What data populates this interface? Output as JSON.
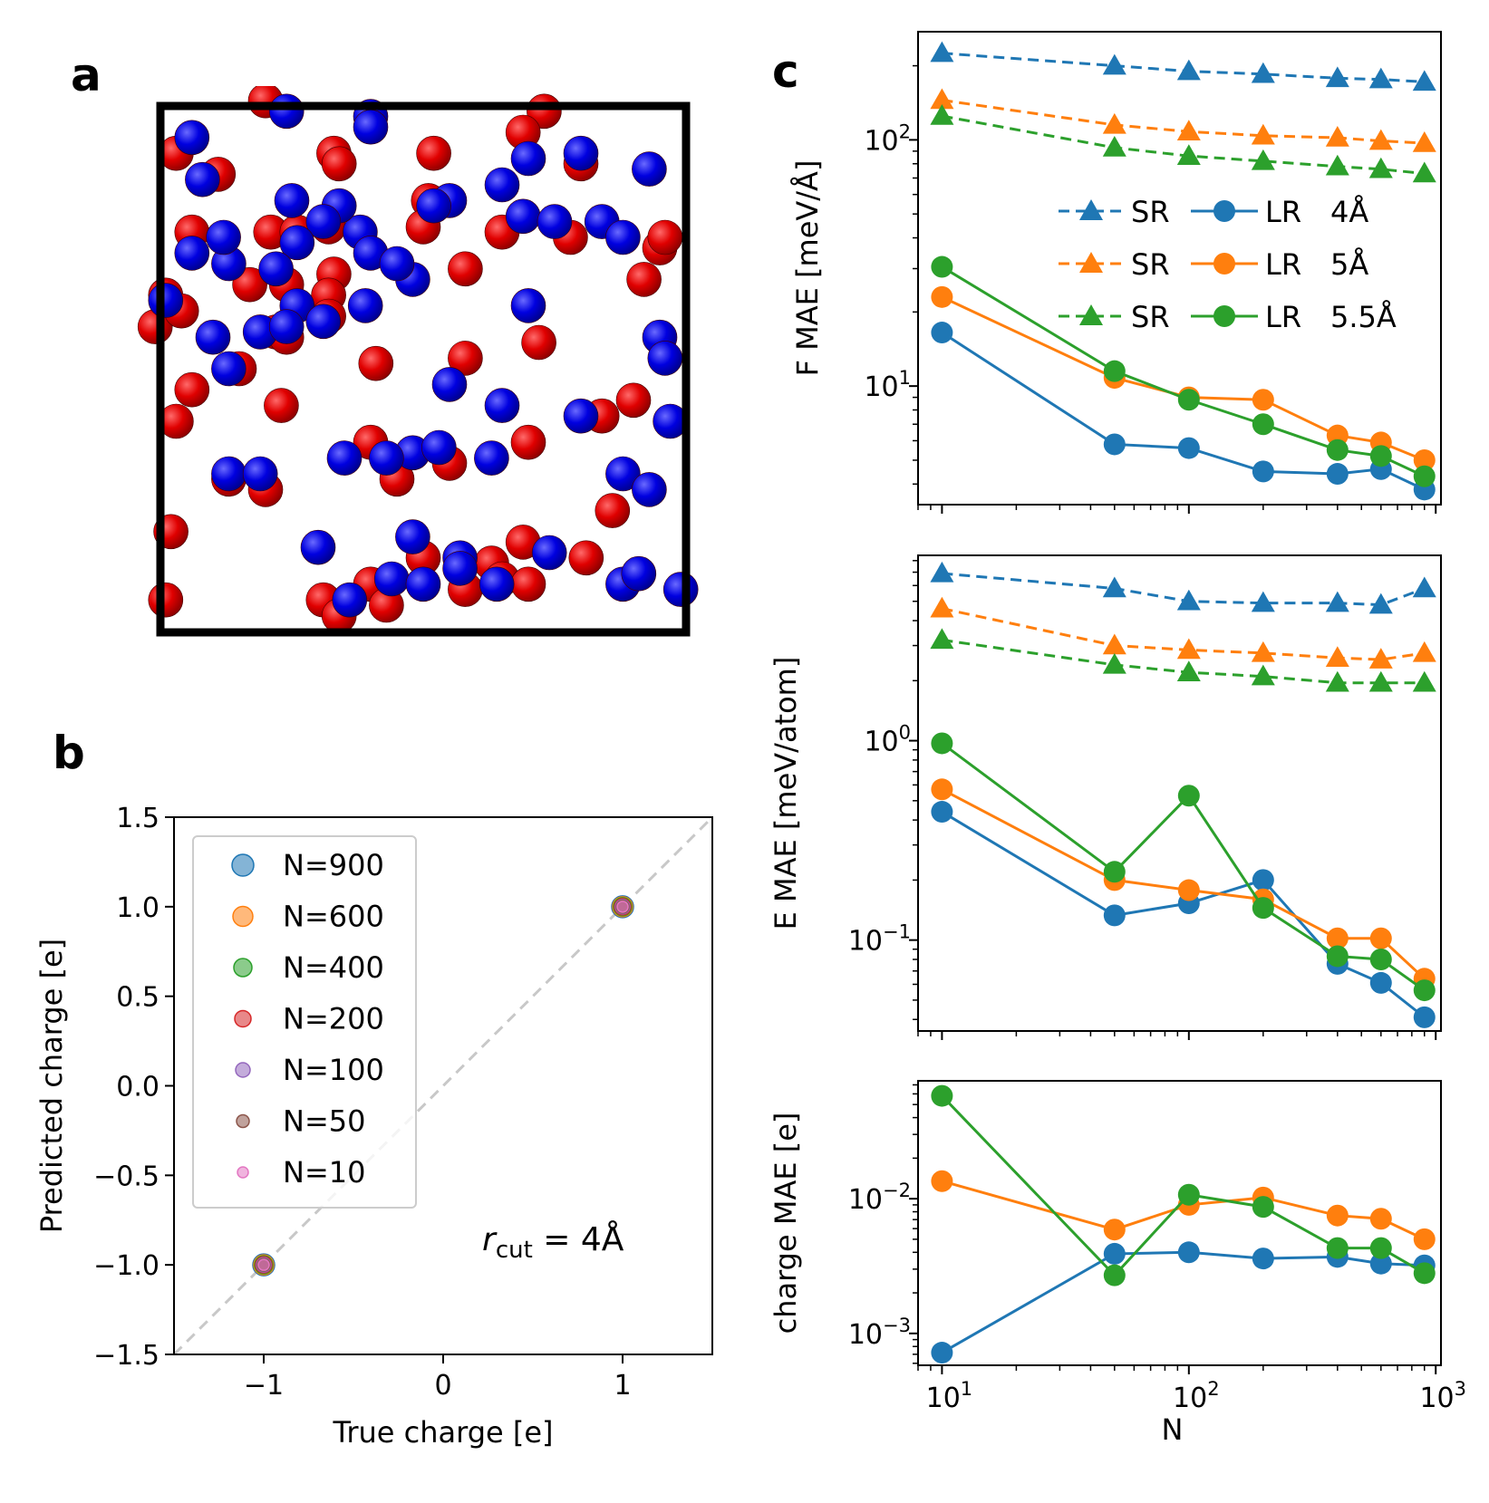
{
  "panels": {
    "a": "a",
    "b": "b",
    "c": "c"
  },
  "colors": {
    "blue": "#1f77b4",
    "orange": "#ff7f0e",
    "green": "#2ca02c",
    "red": "#d62728",
    "purple": "#9467bd",
    "brown": "#8c564b",
    "pink": "#e377c2",
    "atom_red": "#e00000",
    "atom_blue": "#0000e0"
  },
  "atoms": {
    "description_box": "simulation cell",
    "positive": [
      [
        0.2,
        -0.01
      ],
      [
        0.73,
        0.01
      ],
      [
        0.69,
        0.05
      ],
      [
        0.52,
        0.09
      ],
      [
        0.03,
        0.09
      ],
      [
        0.11,
        0.13
      ],
      [
        0.33,
        0.09
      ],
      [
        0.34,
        0.11
      ],
      [
        0.8,
        0.11
      ],
      [
        0.51,
        0.18
      ],
      [
        0.5,
        0.23
      ],
      [
        0.65,
        0.24
      ],
      [
        0.21,
        0.24
      ],
      [
        0.26,
        0.24
      ],
      [
        0.32,
        0.23
      ],
      [
        0.06,
        0.24
      ],
      [
        0.78,
        0.25
      ],
      [
        0.95,
        0.27
      ],
      [
        0.92,
        0.33
      ],
      [
        0.33,
        0.32
      ],
      [
        0.17,
        0.34
      ],
      [
        0.24,
        0.34
      ],
      [
        0.32,
        0.36
      ],
      [
        0.32,
        0.4
      ],
      [
        0.58,
        0.31
      ],
      [
        0.01,
        0.36
      ],
      [
        -0.01,
        0.42
      ],
      [
        0.04,
        0.39
      ],
      [
        0.22,
        0.43
      ],
      [
        0.24,
        0.44
      ],
      [
        0.41,
        0.49
      ],
      [
        0.58,
        0.48
      ],
      [
        0.15,
        0.5
      ],
      [
        0.06,
        0.54
      ],
      [
        0.72,
        0.45
      ],
      [
        0.84,
        0.59
      ],
      [
        0.9,
        0.56
      ],
      [
        0.23,
        0.57
      ],
      [
        0.03,
        0.6
      ],
      [
        0.45,
        0.71
      ],
      [
        0.55,
        0.68
      ],
      [
        0.4,
        0.64
      ],
      [
        0.7,
        0.64
      ],
      [
        0.13,
        0.71
      ],
      [
        0.2,
        0.73
      ],
      [
        0.02,
        0.81
      ],
      [
        0.86,
        0.77
      ],
      [
        0.69,
        0.83
      ],
      [
        0.63,
        0.87
      ],
      [
        0.5,
        0.86
      ],
      [
        0.81,
        0.86
      ],
      [
        0.4,
        0.91
      ],
      [
        0.58,
        0.92
      ],
      [
        0.31,
        0.94
      ],
      [
        0.43,
        0.95
      ],
      [
        0.34,
        0.97
      ],
      [
        0.65,
        0.9
      ],
      [
        0.01,
        0.94
      ],
      [
        0.96,
        0.25
      ],
      [
        0.7,
        0.91
      ]
    ],
    "negative": [
      [
        0.06,
        0.06
      ],
      [
        0.24,
        0.01
      ],
      [
        0.4,
        0.02
      ],
      [
        0.4,
        0.04
      ],
      [
        0.8,
        0.09
      ],
      [
        0.08,
        0.14
      ],
      [
        0.7,
        0.1
      ],
      [
        0.93,
        0.12
      ],
      [
        0.55,
        0.18
      ],
      [
        0.65,
        0.15
      ],
      [
        0.25,
        0.18
      ],
      [
        0.38,
        0.24
      ],
      [
        0.34,
        0.19
      ],
      [
        0.31,
        0.22
      ],
      [
        0.26,
        0.26
      ],
      [
        0.52,
        0.19
      ],
      [
        0.69,
        0.21
      ],
      [
        0.75,
        0.22
      ],
      [
        0.84,
        0.22
      ],
      [
        0.88,
        0.25
      ],
      [
        0.01,
        0.37
      ],
      [
        0.06,
        0.28
      ],
      [
        0.13,
        0.3
      ],
      [
        0.12,
        0.25
      ],
      [
        0.22,
        0.31
      ],
      [
        0.26,
        0.38
      ],
      [
        0.31,
        0.41
      ],
      [
        0.39,
        0.38
      ],
      [
        0.4,
        0.28
      ],
      [
        0.48,
        0.33
      ],
      [
        0.45,
        0.3
      ],
      [
        0.7,
        0.38
      ],
      [
        0.95,
        0.44
      ],
      [
        0.96,
        0.48
      ],
      [
        0.1,
        0.44
      ],
      [
        0.13,
        0.5
      ],
      [
        0.19,
        0.43
      ],
      [
        0.24,
        0.42
      ],
      [
        0.55,
        0.53
      ],
      [
        0.65,
        0.57
      ],
      [
        0.8,
        0.59
      ],
      [
        0.97,
        0.6
      ],
      [
        0.35,
        0.67
      ],
      [
        0.48,
        0.66
      ],
      [
        0.53,
        0.65
      ],
      [
        0.43,
        0.67
      ],
      [
        0.13,
        0.7
      ],
      [
        0.19,
        0.7
      ],
      [
        0.63,
        0.67
      ],
      [
        0.88,
        0.7
      ],
      [
        0.93,
        0.73
      ],
      [
        0.3,
        0.84
      ],
      [
        0.48,
        0.82
      ],
      [
        0.57,
        0.86
      ],
      [
        0.74,
        0.85
      ],
      [
        0.57,
        0.88
      ],
      [
        0.64,
        0.91
      ],
      [
        0.44,
        0.9
      ],
      [
        0.5,
        0.91
      ],
      [
        0.36,
        0.94
      ],
      [
        0.88,
        0.91
      ],
      [
        0.91,
        0.89
      ],
      [
        0.99,
        0.92
      ]
    ]
  },
  "chart_data": [
    {
      "panel": "b",
      "type": "scatter",
      "title": "",
      "xlabel": "True charge [e]",
      "ylabel": "Predicted charge [e]",
      "xlim": [
        -1.5,
        1.5
      ],
      "ylim": [
        -1.5,
        1.5
      ],
      "xticks": [
        {
          "v": -1,
          "label": "−1"
        },
        {
          "v": 0,
          "label": "0"
        },
        {
          "v": 1,
          "label": "1"
        }
      ],
      "yticks": [
        {
          "v": 1.5,
          "label": "1.5"
        },
        {
          "v": 1.0,
          "label": "1.0"
        },
        {
          "v": 0.5,
          "label": "0.5"
        },
        {
          "v": 0.0,
          "label": "0.0"
        },
        {
          "v": -0.5,
          "label": "−0.5"
        },
        {
          "v": -1.0,
          "label": "−1.0"
        },
        {
          "v": -1.5,
          "label": "−1.5"
        }
      ],
      "reference_line": "y = x",
      "annotation_main": "r",
      "annotation_sub": "cut",
      "annotation_rest": " = 4Å",
      "legend_position": "upper-left",
      "series": [
        {
          "name": "N=900",
          "color": "#1f77b4",
          "x": [
            -1,
            1
          ],
          "y": [
            -1,
            1
          ]
        },
        {
          "name": "N=600",
          "color": "#ff7f0e",
          "x": [
            -1,
            1
          ],
          "y": [
            -1,
            1
          ]
        },
        {
          "name": "N=400",
          "color": "#2ca02c",
          "x": [
            -1,
            1
          ],
          "y": [
            -1,
            1
          ]
        },
        {
          "name": "N=200",
          "color": "#d62728",
          "x": [
            -1,
            1
          ],
          "y": [
            -1,
            1
          ]
        },
        {
          "name": "N=100",
          "color": "#9467bd",
          "x": [
            -1,
            1
          ],
          "y": [
            -1,
            1
          ]
        },
        {
          "name": "N=50",
          "color": "#8c564b",
          "x": [
            -1,
            1
          ],
          "y": [
            -1,
            1
          ]
        },
        {
          "name": "N=10",
          "color": "#e377c2",
          "x": [
            -1,
            1
          ],
          "y": [
            -1,
            1
          ]
        }
      ]
    },
    {
      "panel": "c-top",
      "type": "line",
      "xscale": "log",
      "yscale": "log",
      "ylabel": "F MAE [meV/Å]",
      "xlim": [
        8,
        1050
      ],
      "ylim": [
        3.3,
        275
      ],
      "yticks": [
        {
          "v": 10,
          "label": "10",
          "exp": "1"
        },
        {
          "v": 100,
          "label": "10",
          "exp": "2"
        }
      ],
      "x": [
        10,
        50,
        100,
        200,
        400,
        600,
        900
      ],
      "legend_position": "center-right",
      "legend_labels": {
        "sr": "SR",
        "lr": "LR",
        "cutoffs": [
          "4Å",
          "5Å",
          "5.5Å"
        ]
      },
      "series": [
        {
          "name": "SR 4Å",
          "color": "#1f77b4",
          "kind": "SR",
          "values": [
            225,
            200,
            190,
            185,
            178,
            176,
            172
          ]
        },
        {
          "name": "SR 5Å",
          "color": "#ff7f0e",
          "kind": "SR",
          "values": [
            145,
            115,
            108,
            104,
            102,
            99,
            97
          ]
        },
        {
          "name": "SR 5.5Å",
          "color": "#2ca02c",
          "kind": "SR",
          "values": [
            125,
            93,
            86,
            82,
            78,
            76,
            73
          ]
        },
        {
          "name": "LR 4Å",
          "color": "#1f77b4",
          "kind": "LR",
          "values": [
            16.5,
            5.8,
            5.6,
            4.5,
            4.4,
            4.6,
            3.8
          ]
        },
        {
          "name": "LR 5Å",
          "color": "#ff7f0e",
          "kind": "LR",
          "values": [
            23,
            10.8,
            9.0,
            8.8,
            6.3,
            5.9,
            5.0
          ]
        },
        {
          "name": "LR 5.5Å",
          "color": "#2ca02c",
          "kind": "LR",
          "values": [
            30.5,
            11.5,
            8.8,
            7.0,
            5.5,
            5.2,
            4.3
          ]
        }
      ]
    },
    {
      "panel": "c-middle",
      "type": "line",
      "xscale": "log",
      "yscale": "log",
      "ylabel": "E MAE [meV/atom]",
      "xlim": [
        8,
        1050
      ],
      "ylim": [
        0.035,
        8.5
      ],
      "yticks": [
        {
          "v": 1,
          "label": "10",
          "exp": "0"
        },
        {
          "v": 0.1,
          "label": "10",
          "exp": "−1"
        }
      ],
      "x": [
        10,
        50,
        100,
        200,
        400,
        600,
        900
      ],
      "series": [
        {
          "name": "SR 4Å",
          "color": "#1f77b4",
          "kind": "SR",
          "values": [
            6.9,
            5.8,
            5.0,
            4.9,
            4.9,
            4.8,
            5.8
          ]
        },
        {
          "name": "SR 5Å",
          "color": "#ff7f0e",
          "kind": "SR",
          "values": [
            4.6,
            3.0,
            2.85,
            2.75,
            2.6,
            2.55,
            2.75
          ]
        },
        {
          "name": "SR 5.5Å",
          "color": "#2ca02c",
          "kind": "SR",
          "values": [
            3.2,
            2.4,
            2.2,
            2.1,
            1.95,
            1.95,
            1.95
          ]
        },
        {
          "name": "LR 4Å",
          "color": "#1f77b4",
          "kind": "LR",
          "values": [
            0.44,
            0.133,
            0.153,
            0.2,
            0.076,
            0.061,
            0.041
          ]
        },
        {
          "name": "LR 5Å",
          "color": "#ff7f0e",
          "kind": "LR",
          "values": [
            0.57,
            0.2,
            0.178,
            0.16,
            0.102,
            0.102,
            0.064
          ]
        },
        {
          "name": "LR 5.5Å",
          "color": "#2ca02c",
          "kind": "LR",
          "values": [
            0.97,
            0.22,
            0.53,
            0.145,
            0.083,
            0.08,
            0.056
          ]
        }
      ]
    },
    {
      "panel": "c-bottom",
      "type": "line",
      "xscale": "log",
      "yscale": "log",
      "ylabel": "charge MAE [e]",
      "xlabel": "N",
      "xlim": [
        8,
        1050
      ],
      "ylim": [
        0.00058,
        0.075
      ],
      "yticks": [
        {
          "v": 0.01,
          "label": "10",
          "exp": "−2"
        },
        {
          "v": 0.001,
          "label": "10",
          "exp": "−3"
        }
      ],
      "xticks": [
        {
          "v": 10,
          "label": "10",
          "exp": "1"
        },
        {
          "v": 100,
          "label": "10",
          "exp": "2"
        },
        {
          "v": 1000,
          "label": "10",
          "exp": "3"
        }
      ],
      "x": [
        10,
        50,
        100,
        200,
        400,
        600,
        900
      ],
      "series": [
        {
          "name": "LR 4Å",
          "color": "#1f77b4",
          "kind": "LR",
          "values": [
            0.00072,
            0.0039,
            0.004,
            0.0036,
            0.0037,
            0.0033,
            0.0032
          ]
        },
        {
          "name": "LR 5Å",
          "color": "#ff7f0e",
          "kind": "LR",
          "values": [
            0.0135,
            0.0059,
            0.009,
            0.0102,
            0.0075,
            0.0071,
            0.005
          ]
        },
        {
          "name": "LR 5.5Å",
          "color": "#2ca02c",
          "kind": "LR",
          "values": [
            0.058,
            0.0027,
            0.0107,
            0.0087,
            0.0043,
            0.0043,
            0.0028
          ]
        }
      ]
    }
  ]
}
